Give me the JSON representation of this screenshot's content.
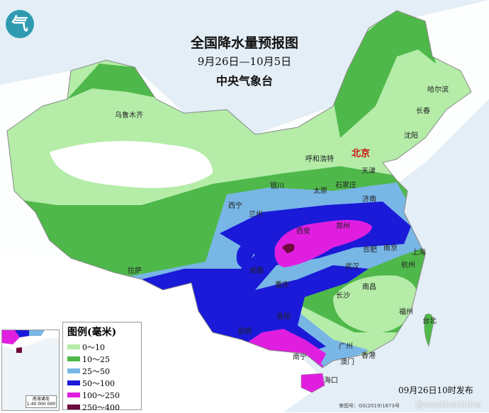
{
  "title": "全国降水量预报图",
  "period": "9月26日—10月5日",
  "agency": "中央气象台",
  "logo_text": "气",
  "legend": {
    "title": "图例(毫米)",
    "items": [
      {
        "label": "0～10",
        "color": "#b4eca8"
      },
      {
        "label": "10～25",
        "color": "#4fb84a"
      },
      {
        "label": "25～50",
        "color": "#78b6e6"
      },
      {
        "label": "50～100",
        "color": "#1a1ad8"
      },
      {
        "label": "100～250",
        "color": "#e01ee0"
      },
      {
        "label": "250～400",
        "color": "#6e0a3c"
      }
    ]
  },
  "cities": {
    "urumqi": "乌鲁木齐",
    "harbin": "哈尔滨",
    "changchun": "长春",
    "shenyang": "沈阳",
    "beijing": "北京",
    "tianjin": "天津",
    "hohhot": "呼和浩特",
    "shijiazhuang": "石家庄",
    "taiyuan": "太原",
    "yinchuan": "银川",
    "jinan": "济南",
    "xining": "西宁",
    "lanzhou": "兰州",
    "zhengzhou": "郑州",
    "xian": "西安",
    "lhasa": "拉萨",
    "chengdu": "成都",
    "chongqing": "重庆",
    "hefei": "合肥",
    "nanjing": "南京",
    "shanghai": "上海",
    "wuhan": "武汉",
    "hangzhou": "杭州",
    "nanchang": "南昌",
    "changsha": "长沙",
    "fuzhou": "福州",
    "taipei": "台北",
    "guiyang": "贵阳",
    "kunming": "昆明",
    "nanning": "南宁",
    "guangzhou": "广州",
    "hongkong": "香港",
    "macau": "澳门",
    "haikou": "海口"
  },
  "inset": {
    "caption": "南海诸岛",
    "scale": "1:40 000 000"
  },
  "publish_time": "09月26日10时发布",
  "watermark": "@weatherchina",
  "approval": "审图号：GS(2019)1673号"
}
